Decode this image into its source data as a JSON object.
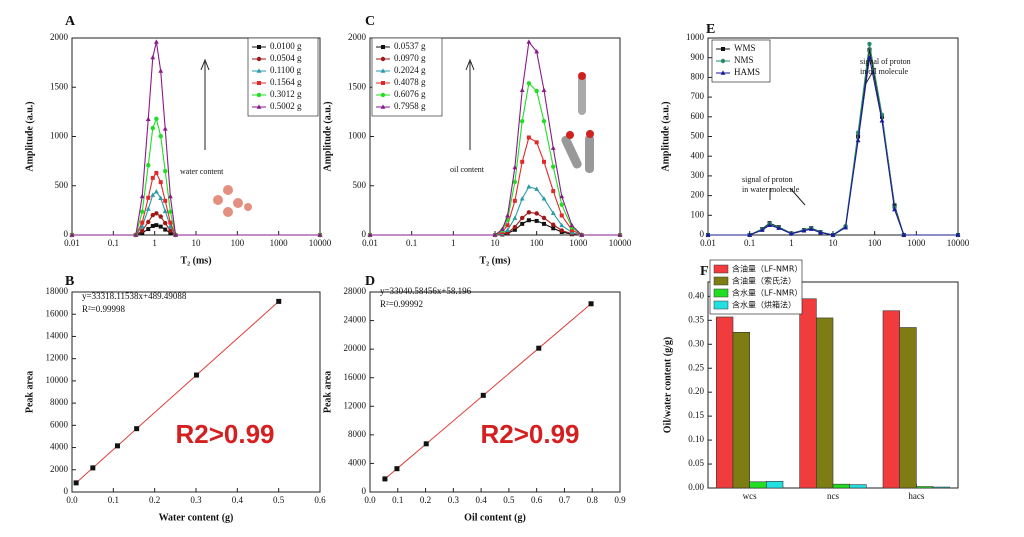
{
  "chart_data": [
    {
      "type": "line",
      "label": "A",
      "xlabel": "T₂ (ms)",
      "ylabel": "Amplitude (a.u.)",
      "xlog": true,
      "xlim": [
        0.01,
        10000
      ],
      "xticks": [
        0.01,
        0.1,
        1,
        10,
        100,
        1000,
        10000
      ],
      "ylim": [
        0,
        2000
      ],
      "yticks": [
        0,
        500,
        1000,
        1500,
        2000
      ],
      "x": [
        0.01,
        0.35,
        0.5,
        0.7,
        0.9,
        1.1,
        1.4,
        1.8,
        2.4,
        3.2,
        10000
      ],
      "series": [
        {
          "name": "0.0100 g",
          "color": "#111111",
          "values": [
            0,
            0,
            20,
            60,
            92,
            100,
            85,
            55,
            20,
            0,
            0
          ]
        },
        {
          "name": "0.0504 g",
          "color": "#a01818",
          "values": [
            0,
            0,
            44,
            132,
            202,
            220,
            187,
            121,
            44,
            0,
            0
          ]
        },
        {
          "name": "0.1100 g",
          "color": "#2a9aa8",
          "values": [
            0,
            0,
            88,
            264,
            405,
            440,
            374,
            242,
            88,
            0,
            0
          ]
        },
        {
          "name": "0.1564 g",
          "color": "#e02a2a",
          "values": [
            0,
            0,
            126,
            378,
            580,
            630,
            536,
            347,
            126,
            0,
            0
          ]
        },
        {
          "name": "0.3012 g",
          "color": "#22dd22",
          "values": [
            0,
            0,
            236,
            708,
            1086,
            1180,
            1003,
            649,
            236,
            0,
            0
          ]
        },
        {
          "name": "0.5002 g",
          "color": "#8a1a8a",
          "values": [
            0,
            0,
            392,
            1176,
            1803,
            1960,
            1666,
            1078,
            392,
            0,
            0
          ]
        }
      ],
      "annotations": [
        {
          "lines": [
            "water content"
          ]
        }
      ]
    },
    {
      "type": "line",
      "label": "C",
      "xlabel": "T₂ (ms)",
      "ylabel": "Amplitude (a.u.)",
      "xlog": true,
      "xlim": [
        0.01,
        10000
      ],
      "xticks": [
        0.01,
        0.1,
        1,
        10,
        100,
        1000,
        10000
      ],
      "ylim": [
        0,
        2000
      ],
      "yticks": [
        0,
        500,
        1000,
        1500,
        2000
      ],
      "x": [
        0.01,
        10,
        15,
        20,
        30,
        45,
        65,
        100,
        150,
        250,
        400,
        700,
        1200,
        10000
      ],
      "series": [
        {
          "name": "0.0537 g",
          "color": "#111111",
          "values": [
            0,
            0,
            5,
            15,
            53,
            113,
            150,
            143,
            113,
            68,
            30,
            8,
            0,
            0
          ]
        },
        {
          "name": "0.0970 g",
          "color": "#a01818",
          "values": [
            0,
            0,
            7,
            23,
            81,
            173,
            230,
            219,
            173,
            104,
            46,
            12,
            0,
            0
          ]
        },
        {
          "name": "0.2024 g",
          "color": "#2a9aa8",
          "values": [
            0,
            0,
            15,
            49,
            172,
            368,
            490,
            466,
            368,
            221,
            98,
            25,
            0,
            0
          ]
        },
        {
          "name": "0.4078 g",
          "color": "#e02a2a",
          "values": [
            0,
            0,
            30,
            99,
            347,
            743,
            990,
            941,
            743,
            446,
            198,
            50,
            0,
            0
          ]
        },
        {
          "name": "0.6076 g",
          "color": "#22dd22",
          "values": [
            0,
            0,
            46,
            154,
            539,
            1155,
            1540,
            1463,
            1155,
            693,
            308,
            77,
            0,
            0
          ]
        },
        {
          "name": "0.7958 g",
          "color": "#8a1a8a",
          "values": [
            0,
            0,
            59,
            196,
            686,
            1470,
            1960,
            1862,
            1470,
            882,
            392,
            98,
            0,
            0
          ]
        }
      ],
      "annotations": [
        {
          "lines": [
            "oil content"
          ]
        }
      ]
    },
    {
      "type": "line",
      "label": "E",
      "ylabel": "Amplitude (a.u.)",
      "xlog": true,
      "xlim": [
        0.01,
        10000
      ],
      "xticks": [
        0.01,
        0.1,
        1,
        10,
        100,
        1000,
        10000
      ],
      "ylim": [
        0,
        1000
      ],
      "yticks": [
        0,
        100,
        200,
        300,
        400,
        500,
        600,
        700,
        800,
        900,
        1000
      ],
      "x": [
        0.01,
        0.1,
        0.2,
        0.3,
        0.5,
        1,
        2,
        3,
        5,
        10,
        20,
        40,
        75,
        150,
        300,
        500,
        10000
      ],
      "series": [
        {
          "name": "WMS",
          "color": "#111111",
          "values": [
            0,
            0,
            30,
            60,
            40,
            8,
            25,
            35,
            15,
            0,
            40,
            500,
            940,
            600,
            150,
            0,
            0
          ]
        },
        {
          "name": "NMS",
          "color": "#2a8a6a",
          "values": [
            0,
            0,
            28,
            55,
            38,
            7,
            24,
            33,
            14,
            0,
            45,
            520,
            970,
            610,
            140,
            0,
            0
          ]
        },
        {
          "name": "HAMS",
          "color": "#1a1a9a",
          "values": [
            0,
            0,
            25,
            50,
            35,
            6,
            22,
            30,
            12,
            0,
            38,
            480,
            900,
            580,
            130,
            0,
            0
          ]
        }
      ],
      "annotations": [
        {
          "lines": [
            "signal of proton",
            "in oil molecule"
          ]
        },
        {
          "lines": [
            "signal of proton",
            "in water molecule"
          ]
        }
      ]
    },
    {
      "type": "scatter",
      "label": "B",
      "xlabel": "Water content (g)",
      "ylabel": "Peak area",
      "xlim": [
        0,
        0.6
      ],
      "xticks": [
        {
          "value": 0,
          "label": "0.0"
        },
        0.1,
        0.2,
        0.3,
        0.4,
        0.5,
        0.6
      ],
      "ylim": [
        0,
        18000
      ],
      "yticks": [
        0,
        2000,
        4000,
        6000,
        8000,
        10000,
        12000,
        14000,
        16000,
        18000
      ],
      "x": [
        0.01,
        0.0504,
        0.11,
        0.1564,
        0.3012,
        0.5002
      ],
      "values": [
        822,
        2169,
        4154,
        5700,
        10525,
        17155
      ],
      "color": "#111111",
      "line_color": "#e0403a",
      "equation": "y=33318.11538x+489.49088",
      "r_squared": "R²=0.99998",
      "note": "R2>0.99"
    },
    {
      "type": "scatter",
      "label": "D",
      "xlabel": "Oil content (g)",
      "ylabel": "Peak area",
      "xlim": [
        0,
        0.9
      ],
      "xticks": [
        {
          "value": 0,
          "label": "0.0"
        },
        0.1,
        0.2,
        0.3,
        0.4,
        0.5,
        0.6,
        0.7,
        0.8,
        0.9
      ],
      "ylim": [
        0,
        28000
      ],
      "yticks": [
        0,
        4000,
        8000,
        12000,
        16000,
        20000,
        24000,
        28000
      ],
      "x": [
        0.0537,
        0.097,
        0.2024,
        0.4078,
        0.6076,
        0.7958
      ],
      "values": [
        1832,
        3263,
        6745,
        13532,
        20134,
        26352
      ],
      "color": "#111111",
      "line_color": "#e0403a",
      "equation": "y=33040.58456x+58.196",
      "r_squared": "R²=0.99992",
      "note": "R2>0.99"
    },
    {
      "type": "bar",
      "label": "F",
      "ylabel": "Oil/water content (g/g)",
      "categories": [
        "wcs",
        "ncs",
        "hacs"
      ],
      "ylim": [
        0,
        0.43
      ],
      "yticks": [
        {
          "value": 0,
          "label": "0.00"
        },
        0.05,
        {
          "value": 0.1,
          "label": "0.10"
        },
        0.15,
        {
          "value": 0.2,
          "label": "0.20"
        },
        0.25,
        {
          "value": 0.3,
          "label": "0.30"
        },
        0.35,
        {
          "value": 0.4,
          "label": "0.40"
        }
      ],
      "series": [
        {
          "name": "含油量（LF-NMR）",
          "color": "#f03c3c",
          "values": [
            0.357,
            0.395,
            0.37
          ]
        },
        {
          "name": "含油量（索氏法）",
          "color": "#7d7d14",
          "values": [
            0.325,
            0.355,
            0.335
          ]
        },
        {
          "name": "含水量（LF-NMR）",
          "color": "#22dd22",
          "values": [
            0.013,
            0.008,
            0.003
          ]
        },
        {
          "name": "含水量（烘箱法）",
          "color": "#22e0e0",
          "values": [
            0.014,
            0.007,
            0.002
          ]
        }
      ]
    }
  ]
}
